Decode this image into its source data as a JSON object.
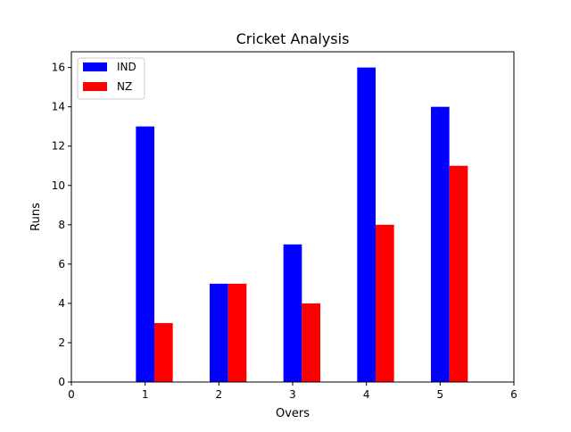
{
  "chart_data": {
    "type": "bar",
    "title": "Cricket Analysis",
    "xlabel": "Overs",
    "ylabel": "Runs",
    "xlim": [
      0,
      6
    ],
    "ylim": [
      0,
      16.8
    ],
    "x_ticks": [
      0,
      1,
      2,
      3,
      4,
      5,
      6
    ],
    "y_ticks": [
      0,
      2,
      4,
      6,
      8,
      10,
      12,
      14,
      16
    ],
    "x": [
      1,
      2,
      3,
      4,
      5
    ],
    "bar_width": 0.25,
    "series": [
      {
        "name": "IND",
        "color": "#0000ff",
        "values": [
          13,
          5,
          7,
          16,
          14
        ]
      },
      {
        "name": "NZ",
        "color": "#ff0000",
        "values": [
          3,
          5,
          4,
          8,
          11
        ]
      }
    ],
    "legend": {
      "position": "top-left",
      "entries": [
        "IND",
        "NZ"
      ]
    },
    "grid": false
  }
}
